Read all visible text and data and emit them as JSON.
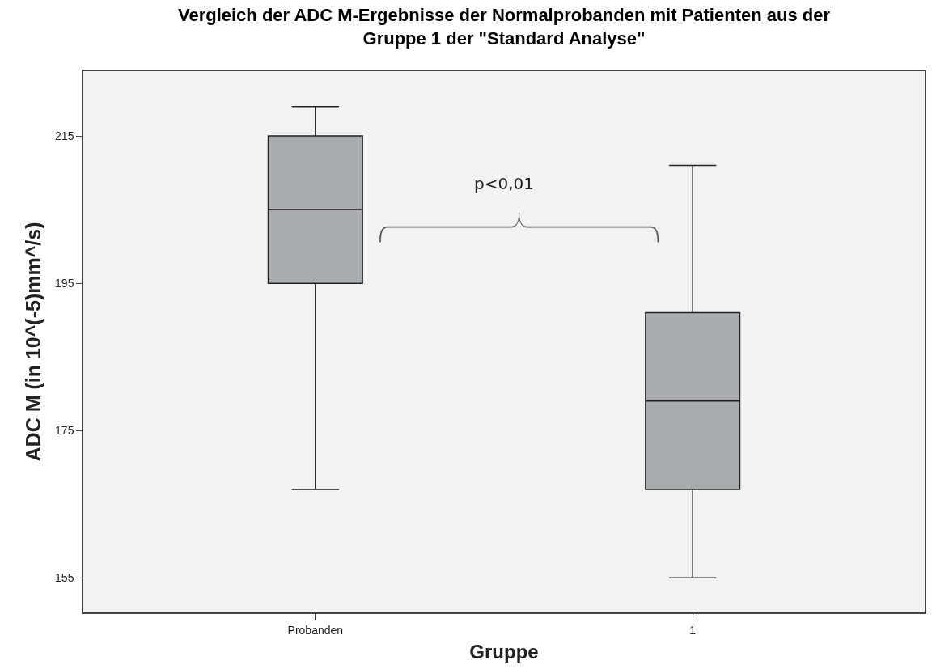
{
  "chart_data": {
    "type": "box",
    "title": "Vergleich der ADC M-Ergebnisse der Normalprobanden mit Patienten aus der\nGruppe 1 der \"Standard Analyse\"",
    "xlabel": "Gruppe",
    "ylabel": "ADC M (in 10^(-5)mm^/s)",
    "categories": [
      "Probanden",
      "1"
    ],
    "boxes": [
      {
        "low": 167,
        "q1": 195,
        "median": 205,
        "q3": 215,
        "high": 219
      },
      {
        "low": 155,
        "q1": 167,
        "median": 179,
        "q3": 191,
        "high": 211
      }
    ],
    "color": "#a9acaf",
    "ylim": [
      150.3,
      223.8
    ],
    "yticks": [
      155,
      175,
      195,
      215
    ],
    "annotations": [
      "p<0,01"
    ]
  }
}
